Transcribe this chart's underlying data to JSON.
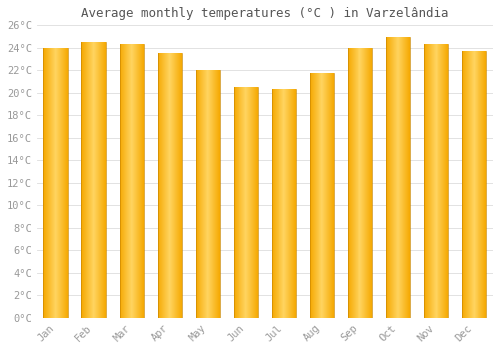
{
  "title": "Average monthly temperatures (°C ) in Varzelândia",
  "months": [
    "Jan",
    "Feb",
    "Mar",
    "Apr",
    "May",
    "Jun",
    "Jul",
    "Aug",
    "Sep",
    "Oct",
    "Nov",
    "Dec"
  ],
  "values": [
    24.0,
    24.5,
    24.3,
    23.5,
    22.0,
    20.5,
    20.3,
    21.8,
    24.0,
    25.0,
    24.3,
    23.7
  ],
  "bar_color_left": "#F5A800",
  "bar_color_center": "#FFD060",
  "bar_color_right": "#E09000",
  "background_color": "#FFFFFF",
  "plot_bg_color": "#FFFFFF",
  "grid_color": "#DDDDDD",
  "ylim": [
    0,
    26
  ],
  "yticks": [
    0,
    2,
    4,
    6,
    8,
    10,
    12,
    14,
    16,
    18,
    20,
    22,
    24,
    26
  ],
  "title_fontsize": 9,
  "tick_fontsize": 7.5,
  "tick_color": "#999999",
  "title_color": "#555555",
  "bar_width": 0.65,
  "figsize": [
    5.0,
    3.5
  ],
  "dpi": 100
}
